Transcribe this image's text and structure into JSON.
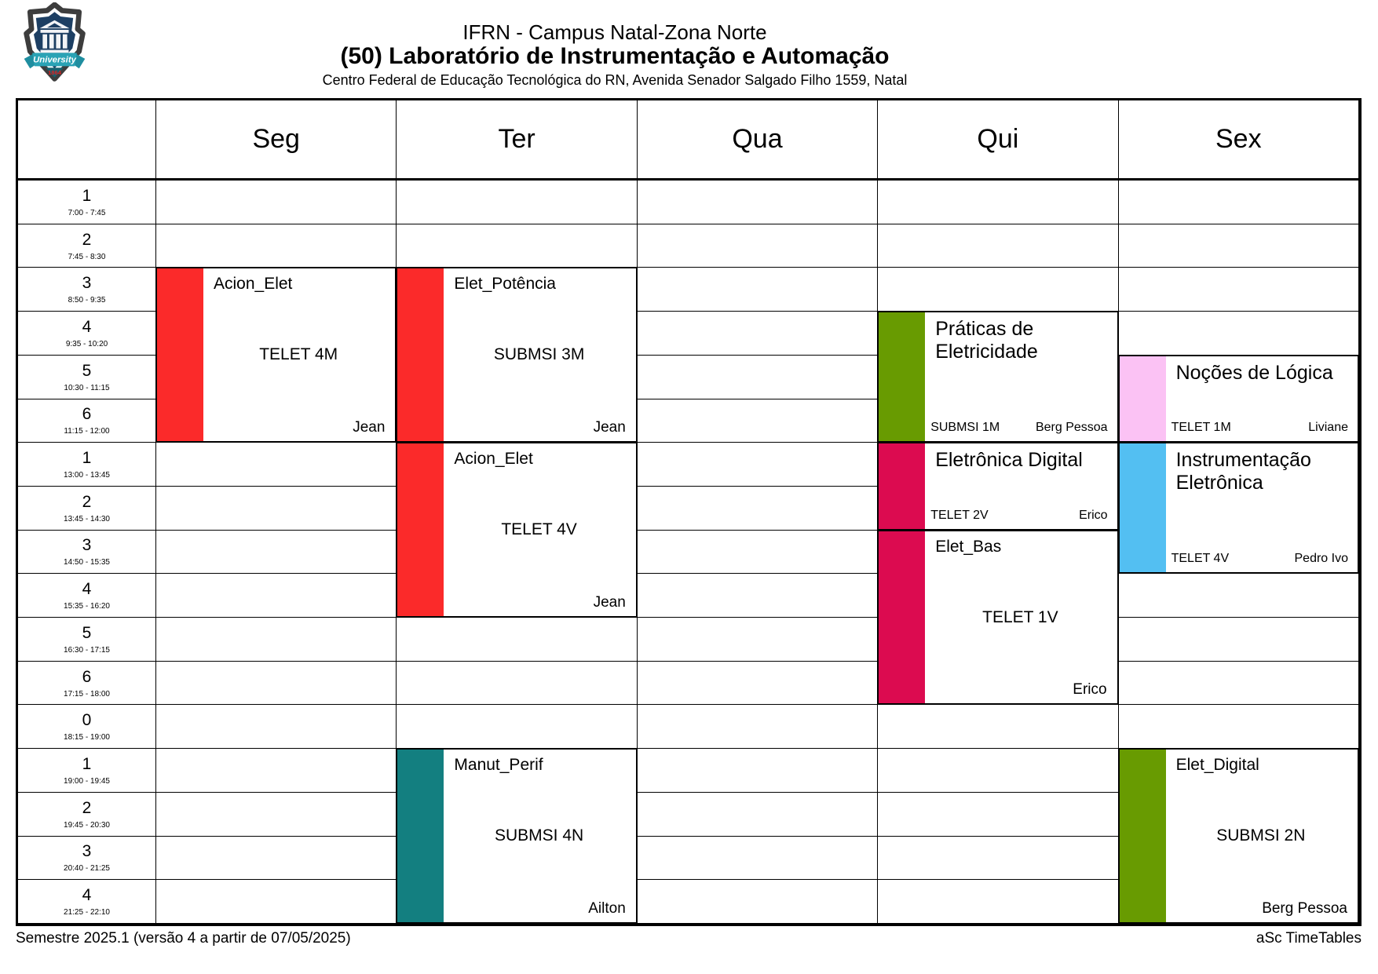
{
  "header": {
    "title_line1": "IFRN - Campus Natal-Zona Norte",
    "title_line2": "(50) Laboratório de Instrumentação e Automação",
    "title_line3": "Centro Federal de Educação Tecnológica do RN, Avenida Senador Salgado Filho 1559, Natal",
    "logo_banner": "University",
    "logo_year": "1864"
  },
  "colors": {
    "red": "#fb2a2a",
    "green": "#689b01",
    "crimson": "#dc0b50",
    "pink": "#fbc2f4",
    "blue": "#53bff2",
    "teal": "#137f80"
  },
  "table": {
    "days": [
      "Seg",
      "Ter",
      "Qua",
      "Qui",
      "Sex"
    ],
    "periods": [
      {
        "num": "1",
        "time": "7:00 - 7:45"
      },
      {
        "num": "2",
        "time": "7:45 - 8:30"
      },
      {
        "num": "3",
        "time": "8:50 - 9:35"
      },
      {
        "num": "4",
        "time": "9:35 - 10:20"
      },
      {
        "num": "5",
        "time": "10:30 - 11:15"
      },
      {
        "num": "6",
        "time": "11:15 - 12:00"
      },
      {
        "num": "1",
        "time": "13:00 - 13:45"
      },
      {
        "num": "2",
        "time": "13:45 - 14:30"
      },
      {
        "num": "3",
        "time": "14:50 - 15:35"
      },
      {
        "num": "4",
        "time": "15:35 - 16:20"
      },
      {
        "num": "5",
        "time": "16:30 - 17:15"
      },
      {
        "num": "6",
        "time": "17:15 - 18:00"
      },
      {
        "num": "0",
        "time": "18:15 - 19:00"
      },
      {
        "num": "1",
        "time": "19:00 - 19:45"
      },
      {
        "num": "2",
        "time": "19:45 - 20:30"
      },
      {
        "num": "3",
        "time": "20:40 - 21:25"
      },
      {
        "num": "4",
        "time": "21:25 - 22:10"
      }
    ]
  },
  "lessons": [
    {
      "day_index": 0,
      "row_start": 2,
      "row_span": 4,
      "color": "red",
      "layout": "center",
      "title": "Acion_Elet",
      "center": "TELET 4M",
      "bottom_right": "Jean"
    },
    {
      "day_index": 1,
      "row_start": 2,
      "row_span": 4,
      "color": "red",
      "layout": "center",
      "title": "Elet_Potência",
      "center": "SUBMSI 3M",
      "bottom_right": "Jean"
    },
    {
      "day_index": 1,
      "row_start": 6,
      "row_span": 4,
      "color": "red",
      "layout": "center",
      "title": "Acion_Elet",
      "center": "TELET 4V",
      "bottom_right": "Jean"
    },
    {
      "day_index": 3,
      "row_start": 3,
      "row_span": 3,
      "color": "green",
      "layout": "split",
      "title": "Práticas de Eletricidade",
      "bottom_left": "SUBMSI 1M",
      "bottom_right": "Berg Pessoa"
    },
    {
      "day_index": 4,
      "row_start": 4,
      "row_span": 2,
      "color": "pink",
      "layout": "split",
      "title": "Noções de Lógica",
      "bottom_left": "TELET 1M",
      "bottom_right": "Liviane"
    },
    {
      "day_index": 3,
      "row_start": 6,
      "row_span": 2,
      "color": "crimson",
      "layout": "split",
      "title": "Eletrônica Digital",
      "bottom_left": "TELET 2V",
      "bottom_right": "Erico"
    },
    {
      "day_index": 3,
      "row_start": 8,
      "row_span": 4,
      "color": "crimson",
      "layout": "center",
      "title": "Elet_Bas",
      "center": "TELET 1V",
      "bottom_right": "Erico"
    },
    {
      "day_index": 4,
      "row_start": 6,
      "row_span": 3,
      "color": "blue",
      "layout": "split",
      "title": "Instrumentação Eletrônica",
      "bottom_left": "TELET 4V",
      "bottom_right": "Pedro Ivo"
    },
    {
      "day_index": 1,
      "row_start": 13,
      "row_span": 4,
      "color": "teal",
      "layout": "center",
      "title": "Manut_Perif",
      "center": "SUBMSI 4N",
      "bottom_right": "Ailton"
    },
    {
      "day_index": 4,
      "row_start": 13,
      "row_span": 4,
      "color": "green",
      "layout": "center",
      "title": "Elet_Digital",
      "center": "SUBMSI 2N",
      "bottom_right": "Berg Pessoa"
    }
  ],
  "footer": {
    "left": "Semestre 2025.1 (versão 4 a partir de 07/05/2025)",
    "right": "aSc TimeTables"
  }
}
